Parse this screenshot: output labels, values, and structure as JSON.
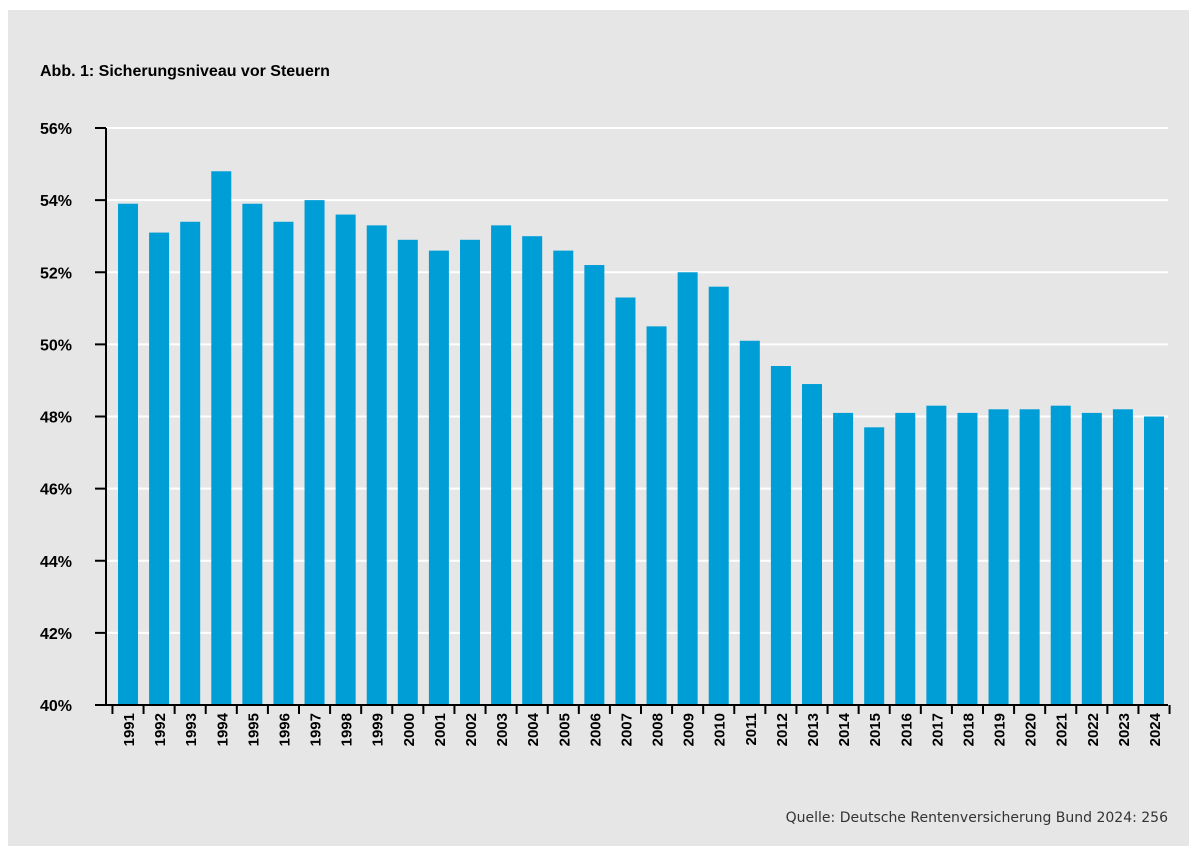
{
  "chart_data": {
    "type": "bar",
    "title": "Abb. 1: Sicherungsniveau vor Steuern",
    "xlabel": "",
    "ylabel": "",
    "categories": [
      "1991",
      "1992",
      "1993",
      "1994",
      "1995",
      "1996",
      "1997",
      "1998",
      "1999",
      "2000",
      "2001",
      "2002",
      "2003",
      "2004",
      "2005",
      "2006",
      "2007",
      "2008",
      "2009",
      "2010",
      "2011",
      "2012",
      "2013",
      "2014",
      "2015",
      "2016",
      "2017",
      "2018",
      "2019",
      "2020",
      "2021",
      "2022",
      "2023",
      "2024"
    ],
    "values": [
      53.9,
      53.1,
      53.4,
      54.8,
      53.9,
      53.4,
      54.0,
      53.6,
      53.3,
      52.9,
      52.6,
      52.9,
      53.3,
      53.0,
      52.6,
      52.2,
      51.3,
      50.5,
      52.0,
      51.6,
      50.1,
      49.4,
      48.9,
      48.1,
      47.7,
      48.1,
      48.3,
      48.1,
      48.2,
      48.2,
      48.3,
      48.1,
      48.2,
      48.0
    ],
    "ylim": [
      40,
      56
    ],
    "y_ticks": [
      40,
      42,
      44,
      46,
      48,
      50,
      52,
      54,
      56
    ],
    "y_tick_labels": [
      "40%",
      "42%",
      "44%",
      "46%",
      "48%",
      "50%",
      "52%",
      "54%",
      "56%"
    ],
    "grid": true,
    "colors": {
      "bar": "#009ed6",
      "background": "#e6e6e6",
      "gridline": "#ffffff",
      "axis": "#000000"
    },
    "source": "Quelle: Deutsche Rentenversicherung Bund 2024: 256"
  }
}
